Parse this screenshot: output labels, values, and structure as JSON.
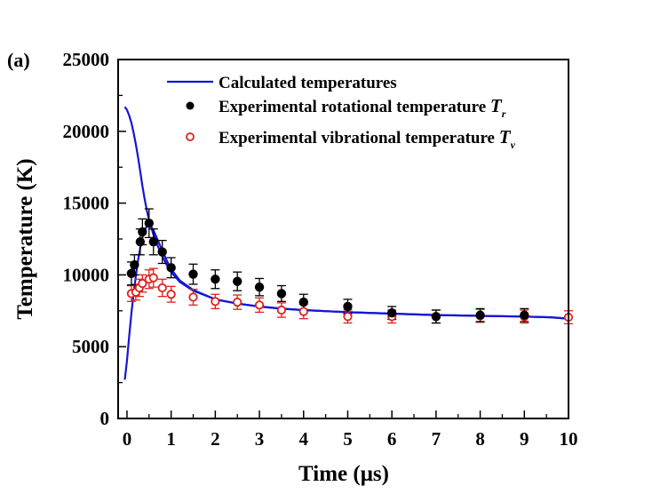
{
  "panel_label": "(a)",
  "chart_data": {
    "type": "scatter",
    "title": "",
    "xlabel": "Time (μs)",
    "ylabel": "Temperature (K)",
    "xlim": [
      -0.2,
      10
    ],
    "ylim": [
      0,
      25000
    ],
    "xticks": [
      0,
      1,
      2,
      3,
      4,
      5,
      6,
      7,
      8,
      9,
      10
    ],
    "xtick_labels": [
      "0",
      "1",
      "2",
      "3",
      "4",
      "5",
      "6",
      "7",
      "8",
      "9",
      "10"
    ],
    "xminor_ticks": [
      0.5,
      1.5,
      2.5,
      3.5,
      4.5,
      5.5,
      6.5,
      7.5,
      8.5,
      9.5
    ],
    "yticks": [
      0,
      5000,
      10000,
      15000,
      20000,
      25000
    ],
    "ytick_labels": [
      "0",
      "5000",
      "10000",
      "15000",
      "20000",
      "25000"
    ],
    "yminor_ticks": [
      2500,
      7500,
      12500,
      17500,
      22500
    ],
    "grid": false,
    "legend_position": "top-right",
    "series": [
      {
        "name": "Calculated temperatures",
        "kind": "line",
        "color": "#1515d6",
        "branches": [
          {
            "x": [
              -0.05,
              0.0,
              0.05,
              0.1,
              0.15,
              0.2,
              0.25,
              0.3,
              0.35,
              0.4,
              0.45,
              0.5,
              0.55,
              0.6,
              0.7,
              0.8,
              0.9,
              1.0,
              1.2,
              1.5,
              2.0,
              2.5,
              3.0,
              3.5,
              4.0,
              5.0,
              6.0,
              7.0,
              8.0,
              9.0,
              9.6,
              10.0
            ],
            "y": [
              21700,
              21500,
              21100,
              20600,
              19900,
              19100,
              18200,
              17200,
              16200,
              15300,
              14500,
              13800,
              13300,
              12800,
              12000,
              11300,
              10700,
              10200,
              9500,
              8900,
              8300,
              8000,
              7800,
              7650,
              7550,
              7400,
              7300,
              7200,
              7150,
              7100,
              7050,
              6950
            ]
          },
          {
            "x": [
              -0.05,
              0.0,
              0.05,
              0.1,
              0.15,
              0.2,
              0.25,
              0.3,
              0.35,
              0.4,
              0.45,
              0.5,
              0.55,
              0.6,
              0.7,
              0.8,
              0.9,
              1.0,
              1.2,
              1.5,
              2.0,
              2.5,
              3.0,
              3.5,
              4.0,
              5.0,
              6.0,
              7.0,
              8.0,
              9.0,
              9.6,
              10.0
            ],
            "y": [
              2700,
              4000,
              5700,
              7300,
              8700,
              9900,
              11000,
              11900,
              12600,
              13100,
              13400,
              13500,
              13350,
              13100,
              12400,
              11700,
              11000,
              10400,
              9600,
              8950,
              8300,
              8000,
              7800,
              7650,
              7550,
              7400,
              7300,
              7200,
              7150,
              7100,
              7050,
              6950
            ]
          }
        ]
      },
      {
        "name": "Experimental rotational temperature T_r",
        "legend_main": "Experimental rotational temperature ",
        "legend_symbol": "T",
        "legend_sub": "r",
        "kind": "scatter",
        "marker": "filled-circle",
        "color": "#000000",
        "errorbar_color": "#000000",
        "x": [
          0.1,
          0.17,
          0.3,
          0.35,
          0.5,
          0.6,
          0.8,
          1.0,
          1.5,
          2.0,
          2.5,
          3.0,
          3.5,
          4.0,
          5.0,
          6.0,
          7.0,
          8.0,
          9.0
        ],
        "y": [
          10100,
          10700,
          12300,
          13000,
          13600,
          12300,
          11600,
          10500,
          10050,
          9700,
          9550,
          9150,
          8700,
          8100,
          7800,
          7350,
          7100,
          7200,
          7200
        ],
        "yerr": [
          800,
          700,
          900,
          900,
          1000,
          900,
          800,
          700,
          700,
          650,
          650,
          600,
          550,
          550,
          500,
          450,
          450,
          450,
          450
        ]
      },
      {
        "name": "Experimental vibrational temperature T_v",
        "legend_main": "Experimental vibrational temperature ",
        "legend_symbol": "T",
        "legend_sub": "v",
        "kind": "scatter",
        "marker": "open-circle",
        "color": "#e0201b",
        "errorbar_color": "#e0201b",
        "x": [
          0.1,
          0.2,
          0.28,
          0.35,
          0.5,
          0.6,
          0.8,
          1.0,
          1.5,
          2.0,
          2.5,
          3.0,
          3.5,
          4.0,
          5.0,
          6.0,
          7.0,
          8.0,
          9.0,
          10.0
        ],
        "y": [
          8700,
          8800,
          9100,
          9400,
          9700,
          9800,
          9100,
          8650,
          8450,
          8150,
          8100,
          7900,
          7550,
          7450,
          7100,
          7100,
          7100,
          7150,
          7100,
          7050
        ],
        "yerr": [
          550,
          550,
          600,
          600,
          650,
          650,
          600,
          550,
          550,
          500,
          500,
          500,
          500,
          500,
          450,
          450,
          450,
          450,
          450,
          450
        ]
      }
    ]
  }
}
